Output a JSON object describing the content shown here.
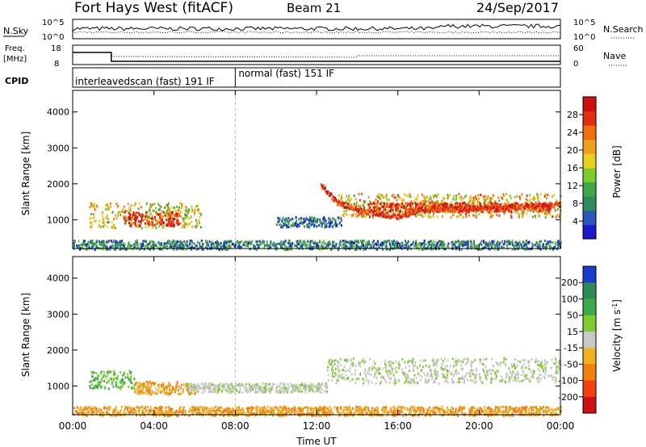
{
  "header": {
    "station": "Fort Hays West (fitACF)",
    "beam": "Beam 21",
    "date": "24/Sep/2017"
  },
  "noise_panel": {
    "left_label": "N.Sky",
    "left_ticks": [
      "10^5",
      "10^0"
    ],
    "right_ticks": [
      "10^5",
      "10^0"
    ],
    "right_label": "N.Search"
  },
  "freq_panel": {
    "label_top": "Freq.",
    "label_unit": "[MHz]",
    "left_ticks": [
      "18",
      "8"
    ],
    "right_ticks": [
      "60",
      "0"
    ],
    "right_label": "Nave"
  },
  "cpid_panel": {
    "label": "CPID",
    "segments": [
      {
        "start_hour": 0,
        "end_hour": 8,
        "text": "interleavedscan (fast) 191 IF"
      },
      {
        "start_hour": 8,
        "end_hour": 24,
        "text": "normal (fast) 151 IF"
      }
    ]
  },
  "x_axis": {
    "label": "Time UT",
    "range_hours": [
      0,
      24
    ],
    "ticks": [
      {
        "hour": 0,
        "label": "00:00"
      },
      {
        "hour": 4,
        "label": "04:00"
      },
      {
        "hour": 8,
        "label": "08:00"
      },
      {
        "hour": 12,
        "label": "12:00"
      },
      {
        "hour": 16,
        "label": "16:00"
      },
      {
        "hour": 20,
        "label": "20:00"
      },
      {
        "hour": 24,
        "label": "00:00"
      }
    ]
  },
  "chart_data": [
    {
      "type": "heatmap",
      "parameter": "power",
      "ylabel": "Slant Range [km]",
      "ylim": [
        200,
        4600
      ],
      "yticks": [
        1000,
        2000,
        3000,
        4000
      ],
      "colorbar": {
        "label": "Power [dB]",
        "range": [
          0,
          32
        ],
        "ticks": [
          4,
          8,
          12,
          16,
          20,
          24,
          28
        ],
        "colors": [
          "#1a1acc",
          "#2b55b8",
          "#2e8b57",
          "#3caa4a",
          "#7ccc30",
          "#e8d020",
          "#f0a020",
          "#f07010",
          "#e03010",
          "#d01010"
        ]
      },
      "regions": [
        {
          "t": [
            0.8,
            6.3
          ],
          "r": [
            800,
            1500
          ],
          "level": 0.55
        },
        {
          "t": [
            2.5,
            5.2
          ],
          "r": [
            850,
            1250
          ],
          "level": 0.9
        },
        {
          "t": [
            10.0,
            13.2
          ],
          "r": [
            820,
            1100
          ],
          "level": 0.2
        },
        {
          "t": [
            13.0,
            24.0
          ],
          "r": [
            1100,
            1750
          ],
          "level": 0.6
        },
        {
          "t": [
            14.5,
            23.5
          ],
          "r": [
            1250,
            1500
          ],
          "level": 0.85
        },
        {
          "t": [
            0.0,
            24.0
          ],
          "r": [
            200,
            450
          ],
          "level": 0.25
        }
      ],
      "ridge": [
        {
          "t": 12.2,
          "r": 2000
        },
        {
          "t": 13.0,
          "r": 1500
        },
        {
          "t": 14.0,
          "r": 1300
        },
        {
          "t": 16.0,
          "r": 1100
        },
        {
          "t": 17.0,
          "r": 1300
        },
        {
          "t": 20.0,
          "r": 1350
        },
        {
          "t": 24.0,
          "r": 1450
        }
      ]
    },
    {
      "type": "heatmap",
      "parameter": "velocity",
      "ylabel": "Slant Range [km]",
      "ylim": [
        200,
        4600
      ],
      "yticks": [
        1000,
        2000,
        3000,
        4000
      ],
      "colorbar": {
        "label": "Velocity [m s^-1]",
        "tick_labels": [
          "200",
          "100",
          "50",
          "15",
          "-15",
          "-50",
          "-100",
          "-200"
        ],
        "colors": [
          "#1a3ccc",
          "#2e8b57",
          "#3caa4a",
          "#7ccc30",
          "#c8c8c8",
          "#f0b020",
          "#f08010",
          "#f04010",
          "#d01010"
        ]
      },
      "regions": [
        {
          "t": [
            0.8,
            3.0
          ],
          "r": [
            950,
            1450
          ],
          "class": "pos-50"
        },
        {
          "t": [
            3.0,
            6.0
          ],
          "r": [
            800,
            1150
          ],
          "class": "neg-50"
        },
        {
          "t": [
            5.5,
            12.5
          ],
          "r": [
            850,
            1100
          ],
          "class": "zero"
        },
        {
          "t": [
            12.5,
            24.0
          ],
          "r": [
            1100,
            1800
          ],
          "class": "zero"
        },
        {
          "t": [
            0.0,
            24.0
          ],
          "r": [
            200,
            450
          ],
          "class": "neg-50"
        }
      ]
    }
  ]
}
